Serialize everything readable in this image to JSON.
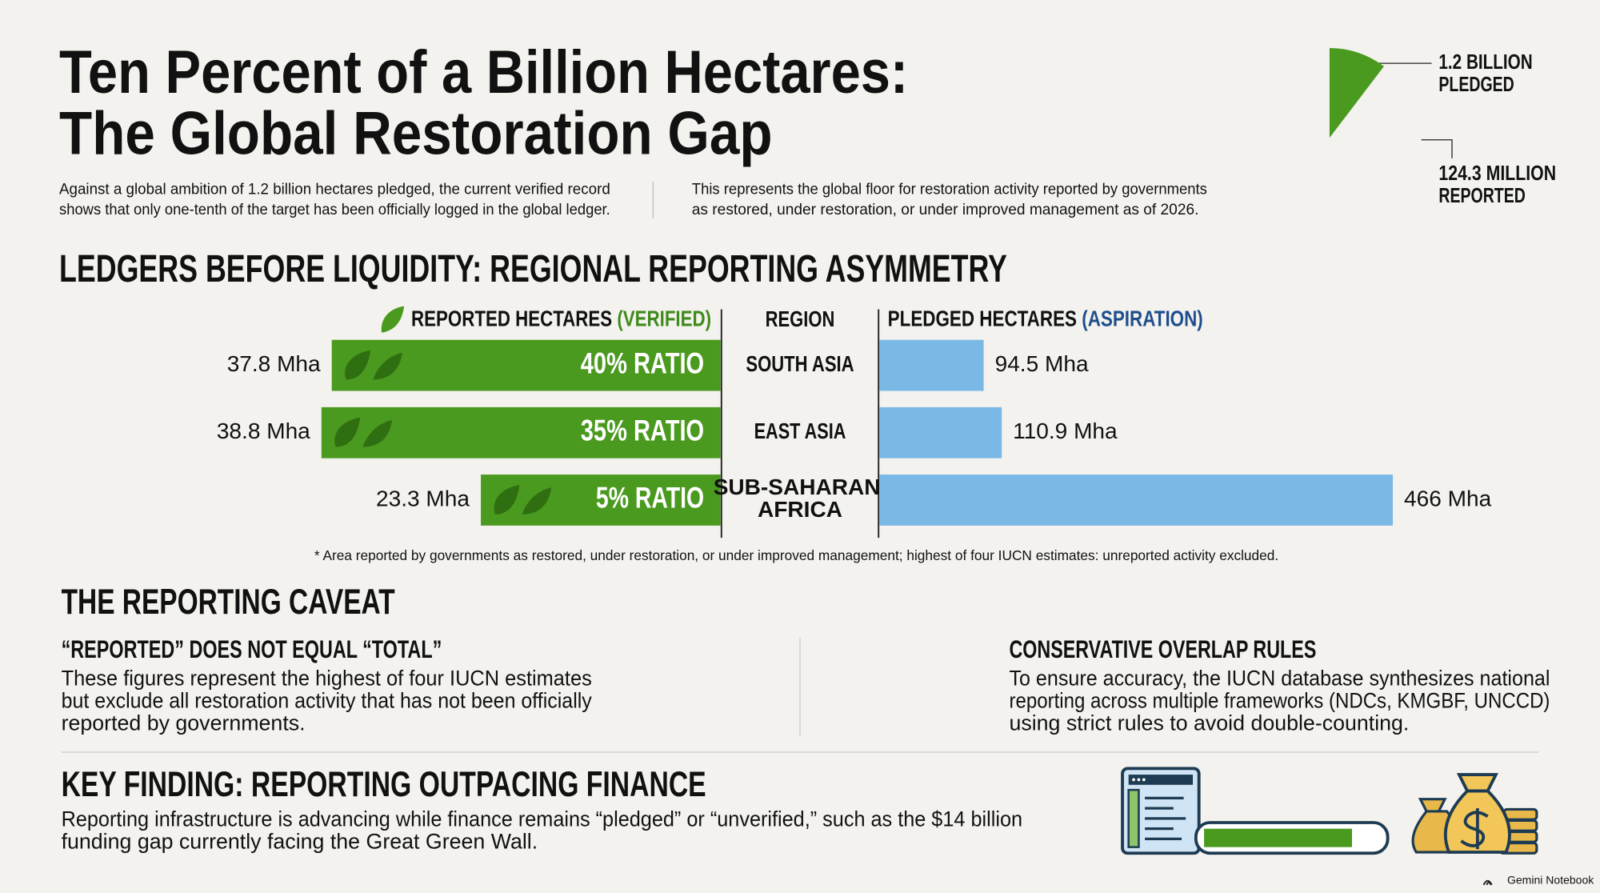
{
  "header": {
    "title": [
      "Ten Percent of a Billion Hectares:",
      "The Global Restoration Gap"
    ],
    "intro_left": [
      "Against a global ambition of 1.2 billion hectares pledged, the current verified record",
      "shows that only one-tenth of the target has been officially logged in the global ledger."
    ],
    "intro_right": [
      "This represents the global floor for restoration activity reported by governments",
      "as restored, under restoration, or under improved management as of 2026."
    ]
  },
  "gauge": {
    "names": [
      "PLEDGED",
      "REPORTED"
    ],
    "values": [
      1200,
      124.3
    ],
    "value_labels": [
      "1.2 BILLION",
      "124.3 MILLION"
    ],
    "color": "#4a9a1f"
  },
  "chart_data": {
    "type": "bar",
    "title": "LEDGERS BEFORE LIQUIDITY: REGIONAL REPORTING ASYMMETRY",
    "category_label": "REGION",
    "categories": [
      "SOUTH ASIA",
      "EAST ASIA",
      "SUB-SAHARAN AFRICA"
    ],
    "series": [
      {
        "name": "REPORTED HECTARES (VERIFIED)",
        "color": "#4a9a1f",
        "values": [
          37.8,
          38.8,
          23.3
        ],
        "value_labels": [
          "37.8 Mha",
          "38.8 Mha",
          "23.3 Mha"
        ]
      },
      {
        "name": "PLEDGED HECTARES (ASPIRATION)",
        "color": "#7ab8e6",
        "values": [
          94.5,
          110.9,
          466
        ],
        "value_labels": [
          "94.5 Mha",
          "110.9 Mha",
          "466 Mha"
        ]
      }
    ],
    "ratios": {
      "values": [
        40,
        35,
        5
      ],
      "value_labels": [
        "40% RATIO",
        "35% RATIO",
        "5% RATIO"
      ]
    },
    "footnote": "* Area reported by governments as restored, under restoration, or under improved management; highest of four IUCN estimates: unreported activity excluded."
  },
  "caveat": {
    "title": "THE REPORTING CAVEAT",
    "items": [
      {
        "title": "“REPORTED” DOES NOT EQUAL “TOTAL”",
        "body": [
          "These figures represent the highest of four IUCN estimates",
          "but exclude all restoration activity that has not been officially",
          "reported by governments."
        ]
      },
      {
        "title": "CONSERVATIVE OVERLAP RULES",
        "body": [
          "To ensure accuracy, the IUCN database synthesizes national",
          "reporting across multiple frameworks (NDCs, KMGBF, UNCCD)",
          "using strict rules to avoid double-counting."
        ]
      }
    ]
  },
  "key_finding": {
    "title": "KEY FINDING: REPORTING OUTPACING FINANCE",
    "body": [
      "Reporting infrastructure is advancing while finance remains “pledged” or “unverified,” such as the $14 billion",
      "funding gap currently facing the Great Green Wall."
    ]
  },
  "footer": {
    "brand": "Gemini Notebook"
  }
}
